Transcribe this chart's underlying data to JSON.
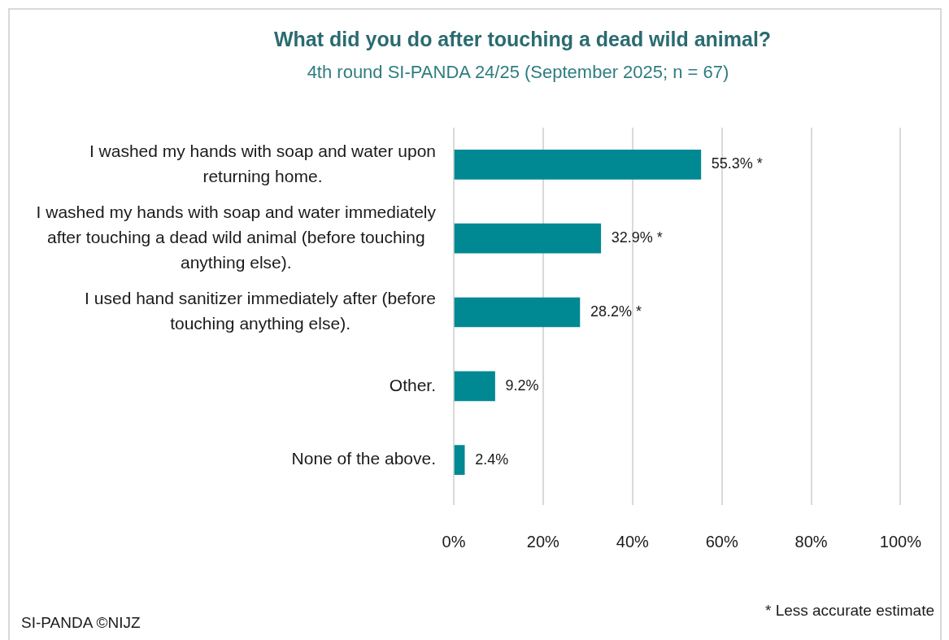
{
  "chart_data": {
    "type": "bar",
    "orientation": "horizontal",
    "title": "What did you do after touching a dead wild animal?",
    "subtitle": "4th round SI-PANDA 24/25 (September 2025; n = 67)",
    "categories": [
      "I washed my hands with soap and water upon returning home.",
      "I washed my hands with soap and water immediately after touching a dead wild animal (before touching anything else).",
      "I used hand sanitizer immediately after (before touching anything else).",
      "Other.",
      "None of the above."
    ],
    "values": [
      55.3,
      32.9,
      28.2,
      9.2,
      2.4
    ],
    "value_labels": [
      "55.3% *",
      "32.9% *",
      "28.2% *",
      "9.2%",
      "2.4%"
    ],
    "color": "#008893",
    "xlim": [
      0,
      100
    ],
    "xticks": [
      {
        "value": 0,
        "label": "0%"
      },
      {
        "value": 20,
        "label": "20%"
      },
      {
        "value": 40,
        "label": "40%"
      },
      {
        "value": 60,
        "label": "60%"
      },
      {
        "value": 80,
        "label": "80%"
      },
      {
        "value": 100,
        "label": "100%"
      }
    ],
    "grid": "x",
    "annotations": [
      "SI-PANDA ©NIJZ",
      "* Less accurate estimate"
    ]
  }
}
